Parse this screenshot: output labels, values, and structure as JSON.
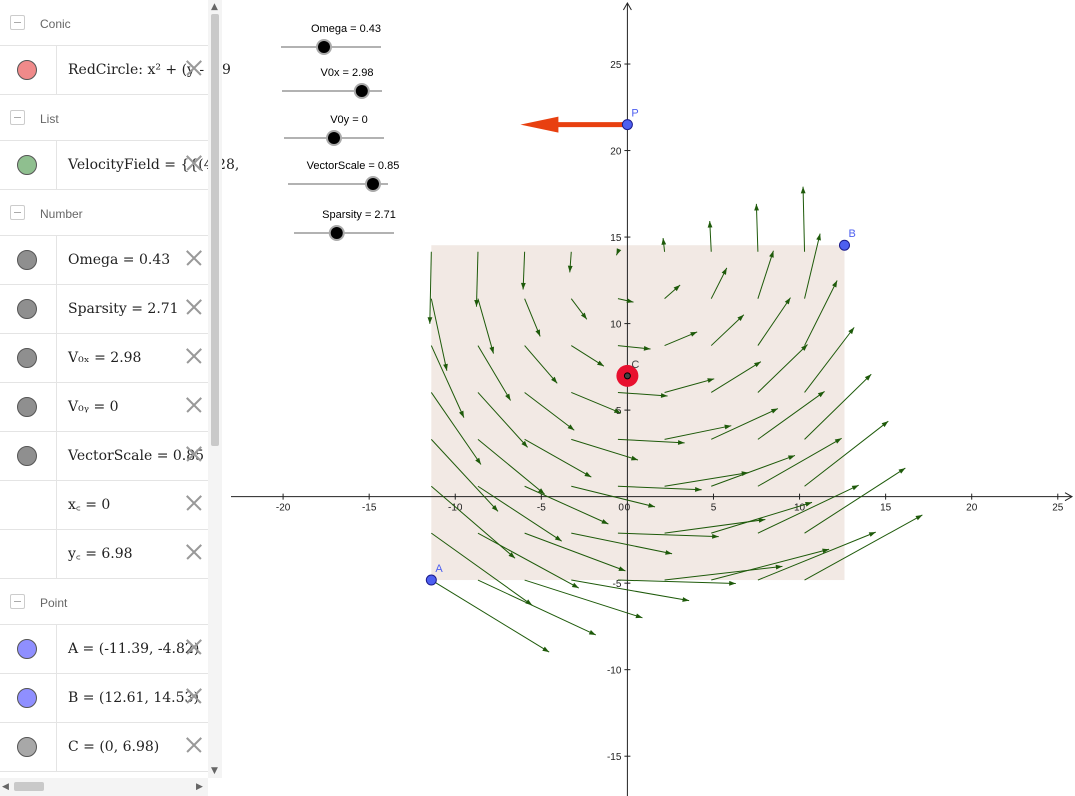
{
  "algebra": {
    "groups": [
      {
        "label": "Conic",
        "items": [
          {
            "name": "redcircle",
            "text": "RedCircle: x² + (y - 6.9",
            "color": "#f08a8a"
          }
        ]
      },
      {
        "label": "List",
        "items": [
          {
            "name": "velocityfield",
            "text": "VelocityField  =  {{(4.28,",
            "color": "#8fbf8f"
          }
        ]
      },
      {
        "label": "Number",
        "items": [
          {
            "name": "omega",
            "text": "Omega  =  0.43",
            "color": "#8f8f8f"
          },
          {
            "name": "sparsity",
            "text": "Sparsity  =  2.71",
            "color": "#8f8f8f"
          },
          {
            "name": "v0x",
            "text": "V₀ₓ  =  2.98",
            "color": "#8f8f8f"
          },
          {
            "name": "v0y",
            "text": "V₀ᵧ  =  0",
            "color": "#8f8f8f"
          },
          {
            "name": "vectorscale",
            "text": "VectorScale  =  0.85",
            "color": "#8f8f8f"
          },
          {
            "name": "xc",
            "text": "x꜀  =  0",
            "color": ""
          },
          {
            "name": "yc",
            "text": "y꜀  =  6.98",
            "color": ""
          }
        ]
      },
      {
        "label": "Point",
        "items": [
          {
            "name": "point-a",
            "text": "A  =  (-11.39, -4.82)",
            "color": "#8f8fff"
          },
          {
            "name": "point-b",
            "text": "B  =  (12.61, 14.53)",
            "color": "#8f8fff"
          },
          {
            "name": "point-c",
            "text": "C  =  (0, 6.98)",
            "color": "#a8a8a8"
          }
        ]
      }
    ]
  },
  "sliders": [
    {
      "label": "Omega = 0.43",
      "value": 0.43,
      "min": 0,
      "max": 1
    },
    {
      "label": "V0x = 2.98",
      "value": 2.98,
      "min": -5,
      "max": 5
    },
    {
      "label": "V0y = 0",
      "value": 0,
      "min": -5,
      "max": 5
    },
    {
      "label": "VectorScale = 0.85",
      "value": 0.85,
      "min": 0,
      "max": 1
    },
    {
      "label": "Sparsity = 2.71",
      "value": 2.71,
      "min": 1,
      "max": 5
    }
  ],
  "graph": {
    "x_ticks": [
      -20,
      -15,
      -10,
      -5,
      0,
      5,
      10,
      15,
      20,
      25
    ],
    "y_ticks": [
      -15,
      -10,
      -5,
      5,
      10,
      15,
      20,
      25
    ],
    "xlim": [
      -23.2,
      26
    ],
    "ylim": [
      -17.3,
      28.7
    ],
    "region": {
      "x1": -11.39,
      "y1": -4.82,
      "x2": 12.61,
      "y2": 14.53
    },
    "points": [
      {
        "label": "A",
        "x": -11.39,
        "y": -4.82
      },
      {
        "label": "B",
        "x": 12.61,
        "y": 14.53
      },
      {
        "label": "P",
        "x": 0,
        "y": 21.5
      },
      {
        "label": "C",
        "x": 0,
        "y": 6.98
      }
    ],
    "circle_center": {
      "x": 0,
      "y": 6.98
    },
    "field": {
      "omega": 0.43,
      "v0x": 2.98,
      "v0y": 0,
      "scale": 0.85,
      "sparsity": 2.71,
      "xc": 0,
      "yc": 6.98
    },
    "colors": {
      "arrow": "#1e5a0a",
      "region": "#f2e9e4",
      "point": "#4d5ff0",
      "circle": "#e8102f",
      "velocity": "#e84010"
    }
  }
}
